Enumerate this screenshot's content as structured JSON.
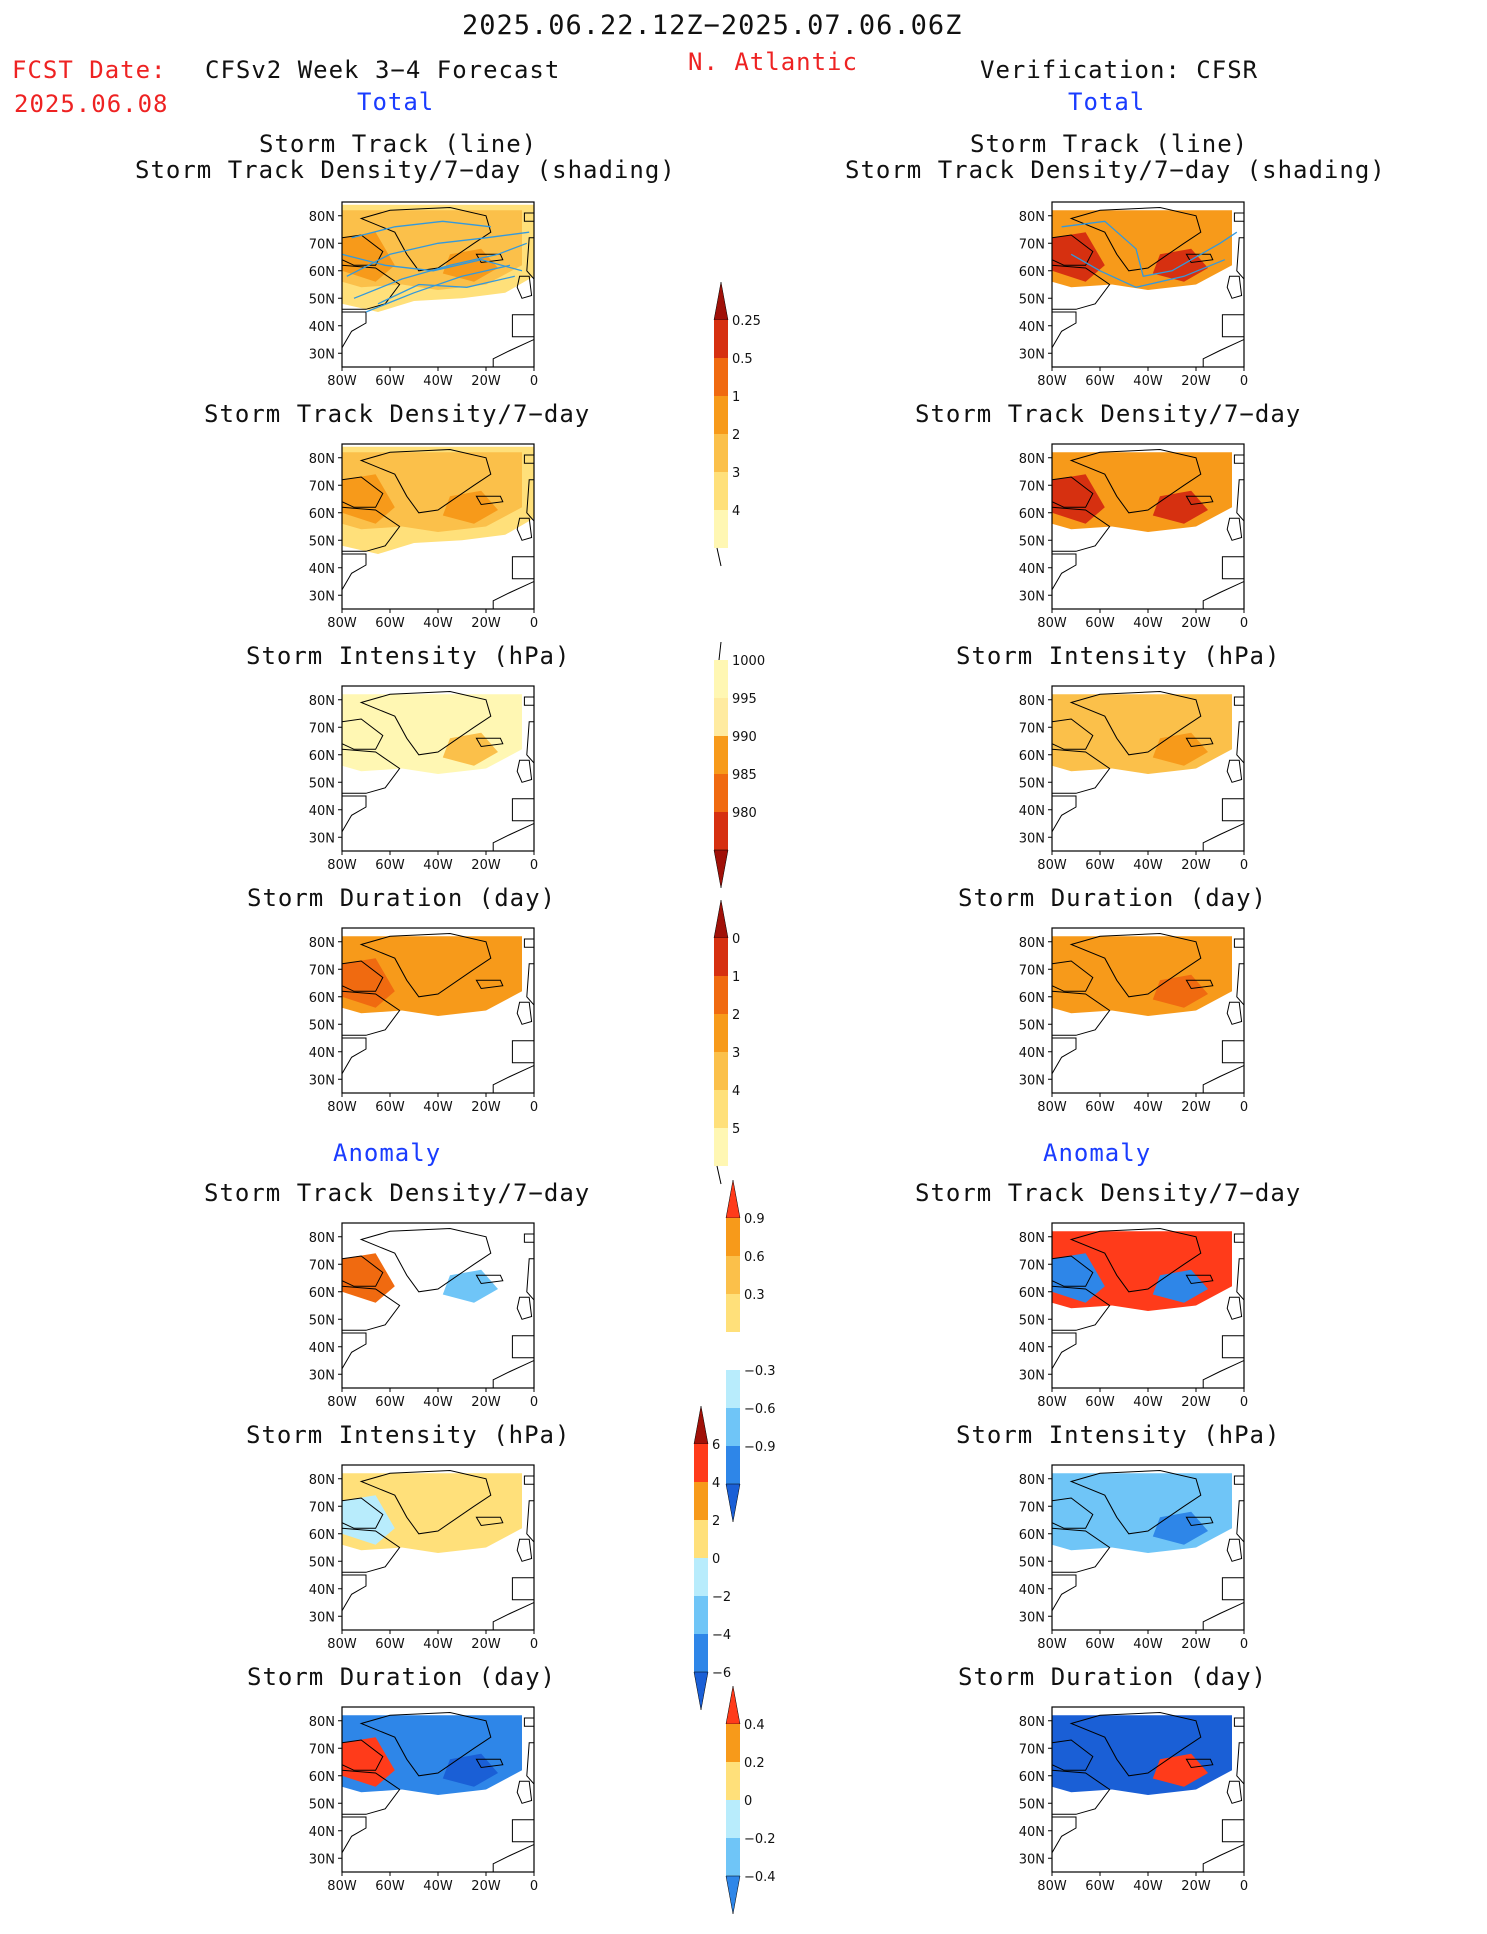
{
  "header": {
    "date_range": "2025.06.22.12Z−2025.07.06.06Z",
    "fcst_label": "FCST Date:",
    "fcst_date": "2025.06.08",
    "model_title": "CFSv2 Week 3−4 Forecast",
    "region": "N. Atlantic",
    "verification": "Verification: CFSR",
    "total_left": "Total",
    "total_right": "Total",
    "anomaly_left": "Anomaly",
    "anomaly_right": "Anomaly"
  },
  "colors": {
    "title_red": "#ee2222",
    "label_blue": "#1a3cff",
    "track_line": "#3399dd",
    "land_outline": "#000000"
  },
  "chart_data": [
    {
      "id": "fc_track",
      "type": "heatmap",
      "panel": "forecast",
      "title_line1": "Storm Track (line)",
      "title_line2": "Storm Track Density/7−day (shading)",
      "xticks": [
        "80W",
        "60W",
        "40W",
        "20W",
        "0"
      ],
      "yticks": [
        "80N",
        "70N",
        "60N",
        "50N",
        "40N",
        "30N"
      ],
      "xlim": [
        -80,
        0
      ],
      "ylim": [
        25,
        85
      ],
      "overlay": "storm track lines"
    },
    {
      "id": "ob_track",
      "type": "heatmap",
      "panel": "verification",
      "title_line1": "Storm Track (line)",
      "title_line2": "Storm Track Density/7−day (shading)",
      "xticks": [
        "80W",
        "60W",
        "40W",
        "20W",
        "0"
      ],
      "yticks": [
        "80N",
        "70N",
        "60N",
        "50N",
        "40N",
        "30N"
      ],
      "xlim": [
        -80,
        0
      ],
      "ylim": [
        25,
        85
      ],
      "overlay": "storm track lines"
    },
    {
      "id": "fc_dens",
      "type": "heatmap",
      "panel": "forecast",
      "title": "Storm Track Density/7−day",
      "xticks": [
        "80W",
        "60W",
        "40W",
        "20W",
        "0"
      ],
      "yticks": [
        "80N",
        "70N",
        "60N",
        "50N",
        "40N",
        "30N"
      ],
      "xlim": [
        -80,
        0
      ],
      "ylim": [
        25,
        85
      ]
    },
    {
      "id": "ob_dens",
      "type": "heatmap",
      "panel": "verification",
      "title": "Storm Track Density/7−day",
      "xticks": [
        "80W",
        "60W",
        "40W",
        "20W",
        "0"
      ],
      "yticks": [
        "80N",
        "70N",
        "60N",
        "50N",
        "40N",
        "30N"
      ],
      "xlim": [
        -80,
        0
      ],
      "ylim": [
        25,
        85
      ]
    },
    {
      "id": "fc_int",
      "type": "heatmap",
      "panel": "forecast",
      "title": "Storm Intensity (hPa)",
      "xticks": [
        "80W",
        "60W",
        "40W",
        "20W",
        "0"
      ],
      "yticks": [
        "80N",
        "70N",
        "60N",
        "50N",
        "40N",
        "30N"
      ],
      "xlim": [
        -80,
        0
      ],
      "ylim": [
        25,
        85
      ]
    },
    {
      "id": "ob_int",
      "type": "heatmap",
      "panel": "verification",
      "title": "Storm Intensity (hPa)",
      "xticks": [
        "80W",
        "60W",
        "40W",
        "20W",
        "0"
      ],
      "yticks": [
        "80N",
        "70N",
        "60N",
        "50N",
        "40N",
        "30N"
      ],
      "xlim": [
        -80,
        0
      ],
      "ylim": [
        25,
        85
      ]
    },
    {
      "id": "fc_dur",
      "type": "heatmap",
      "panel": "forecast",
      "title": "Storm Duration (day)",
      "xticks": [
        "80W",
        "60W",
        "40W",
        "20W",
        "0"
      ],
      "yticks": [
        "80N",
        "70N",
        "60N",
        "50N",
        "40N",
        "30N"
      ],
      "xlim": [
        -80,
        0
      ],
      "ylim": [
        25,
        85
      ]
    },
    {
      "id": "ob_dur",
      "type": "heatmap",
      "panel": "verification",
      "title": "Storm Duration (day)",
      "xticks": [
        "80W",
        "60W",
        "40W",
        "20W",
        "0"
      ],
      "yticks": [
        "80N",
        "70N",
        "60N",
        "50N",
        "40N",
        "30N"
      ],
      "xlim": [
        -80,
        0
      ],
      "ylim": [
        25,
        85
      ]
    },
    {
      "id": "fc_adens",
      "type": "heatmap",
      "panel": "forecast anomaly",
      "title": "Storm Track Density/7−day",
      "xticks": [
        "80W",
        "60W",
        "40W",
        "20W",
        "0"
      ],
      "yticks": [
        "80N",
        "70N",
        "60N",
        "50N",
        "40N",
        "30N"
      ],
      "xlim": [
        -80,
        0
      ],
      "ylim": [
        25,
        85
      ]
    },
    {
      "id": "ob_adens",
      "type": "heatmap",
      "panel": "verification anomaly",
      "title": "Storm Track Density/7−day",
      "xticks": [
        "80W",
        "60W",
        "40W",
        "20W",
        "0"
      ],
      "yticks": [
        "80N",
        "70N",
        "60N",
        "50N",
        "40N",
        "30N"
      ],
      "xlim": [
        -80,
        0
      ],
      "ylim": [
        25,
        85
      ]
    },
    {
      "id": "fc_aint",
      "type": "heatmap",
      "panel": "forecast anomaly",
      "title": "Storm Intensity (hPa)",
      "xticks": [
        "80W",
        "60W",
        "40W",
        "20W",
        "0"
      ],
      "yticks": [
        "80N",
        "70N",
        "60N",
        "50N",
        "40N",
        "30N"
      ],
      "xlim": [
        -80,
        0
      ],
      "ylim": [
        25,
        85
      ]
    },
    {
      "id": "ob_aint",
      "type": "heatmap",
      "panel": "verification anomaly",
      "title": "Storm Intensity (hPa)",
      "xticks": [
        "80W",
        "60W",
        "40W",
        "20W",
        "0"
      ],
      "yticks": [
        "80N",
        "70N",
        "60N",
        "50N",
        "40N",
        "30N"
      ],
      "xlim": [
        -80,
        0
      ],
      "ylim": [
        25,
        85
      ]
    },
    {
      "id": "fc_adur",
      "type": "heatmap",
      "panel": "forecast anomaly",
      "title": "Storm Duration (day)",
      "xticks": [
        "80W",
        "60W",
        "40W",
        "20W",
        "0"
      ],
      "yticks": [
        "80N",
        "70N",
        "60N",
        "50N",
        "40N",
        "30N"
      ],
      "xlim": [
        -80,
        0
      ],
      "ylim": [
        25,
        85
      ]
    },
    {
      "id": "ob_adur",
      "type": "heatmap",
      "panel": "verification anomaly",
      "title": "Storm Duration (day)",
      "xticks": [
        "80W",
        "60W",
        "40W",
        "20W",
        "0"
      ],
      "yticks": [
        "80N",
        "70N",
        "60N",
        "50N",
        "40N",
        "30N"
      ],
      "xlim": [
        -80,
        0
      ],
      "ylim": [
        25,
        85
      ]
    }
  ],
  "colorbars": [
    {
      "id": "cb_density",
      "labels": [
        "0.25",
        "0.5",
        "1",
        "2",
        "3",
        "4"
      ],
      "colors": [
        "#fff7b3",
        "#ffe07a",
        "#fbc04a",
        "#f79a1a",
        "#f06a10",
        "#d63010",
        "#a01008"
      ],
      "open_bottom": true,
      "top_arrow": true
    },
    {
      "id": "cb_intensity",
      "labels": [
        "1000",
        "995",
        "990",
        "985",
        "980"
      ],
      "colors": [
        "#fff7b3",
        "#ffeba0",
        "#f79a1a",
        "#f06a10",
        "#d63010",
        "#a01008"
      ],
      "open_top": true,
      "bottom_arrow": true
    },
    {
      "id": "cb_duration",
      "labels": [
        "0",
        "1",
        "2",
        "3",
        "4",
        "5"
      ],
      "colors": [
        "#fff7b3",
        "#ffe07a",
        "#fbc04a",
        "#f79a1a",
        "#f06a10",
        "#d63010",
        "#a01008"
      ],
      "open_bottom": true,
      "top_arrow": true
    },
    {
      "id": "cb_adens",
      "labels": [
        "0.9",
        "0.6",
        "0.3",
        "−0.3",
        "−0.6",
        "−0.9"
      ],
      "colors": [
        "#ff3b1a",
        "#f79a1a",
        "#fbc04a",
        "#ffe07a",
        "#ffffff",
        "#b8ecfc",
        "#6fc5f7",
        "#2e86e8",
        "#1a5fd6"
      ],
      "diverging": true
    },
    {
      "id": "cb_aint",
      "labels": [
        "6",
        "4",
        "2",
        "0",
        "−2",
        "−4",
        "−6"
      ],
      "colors": [
        "#a01008",
        "#ff3b1a",
        "#f79a1a",
        "#ffe07a",
        "#b8ecfc",
        "#6fc5f7",
        "#2e86e8",
        "#1a5fd6"
      ],
      "diverging": true
    },
    {
      "id": "cb_adur",
      "labels": [
        "0.4",
        "0.2",
        "0",
        "−0.2",
        "−0.4"
      ],
      "colors": [
        "#ff3b1a",
        "#f79a1a",
        "#ffe07a",
        "#b8ecfc",
        "#6fc5f7",
        "#2e86e8"
      ],
      "diverging": true
    }
  ]
}
